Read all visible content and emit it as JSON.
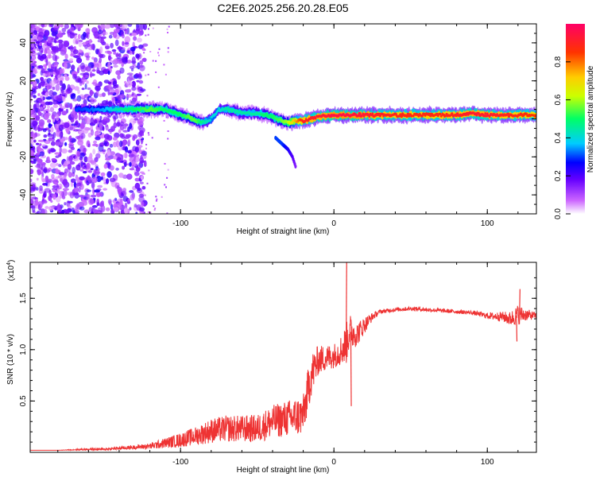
{
  "chart_data": [
    {
      "type": "heatmap",
      "title": "C2E6.2025.256.20.28.E05",
      "xlabel": "Height of straight line (km)",
      "ylabel": "Frequency (Hz)",
      "xlim": [
        -198,
        132
      ],
      "ylim": [
        -50,
        50
      ],
      "x_ticks": [
        -100,
        0,
        100
      ],
      "y_ticks": [
        -40,
        -20,
        0,
        20,
        40
      ],
      "colorbar": {
        "label": "Normalized spectral amplitude",
        "range": [
          0.0,
          1.0
        ],
        "ticks": [
          0.0,
          0.2,
          0.4,
          0.6,
          0.8
        ],
        "tick_labels": [
          "0.0",
          "0.2",
          "0.4",
          "0.6",
          "0.8"
        ],
        "colors": [
          "#ffffff",
          "#cc66ff",
          "#6600ff",
          "#0000ff",
          "#00ccff",
          "#00ff66",
          "#ccff00",
          "#ffcc00",
          "#ff3300",
          "#ff0066"
        ]
      },
      "ridge": {
        "x": [
          -165,
          -150,
          -140,
          -130,
          -120,
          -110,
          -100,
          -95,
          -90,
          -85,
          -80,
          -75,
          -70,
          -65,
          -60,
          -55,
          -50,
          -45,
          -40,
          -35,
          -30,
          -25,
          -20,
          -10,
          0,
          10,
          30,
          50,
          70,
          80,
          90,
          100,
          110,
          120,
          132
        ],
        "y": [
          5,
          5,
          5,
          5,
          5,
          5,
          2,
          1,
          -1,
          -2,
          0,
          5,
          5,
          4,
          3,
          3,
          3,
          2,
          1,
          -1,
          -2,
          -1,
          -1,
          1,
          2,
          2,
          2,
          2,
          2,
          2,
          3,
          2,
          2,
          2,
          2
        ],
        "amplitude": [
          0.3,
          0.35,
          0.45,
          0.5,
          0.55,
          0.5,
          0.5,
          0.55,
          0.55,
          0.45,
          0.4,
          0.4,
          0.45,
          0.45,
          0.45,
          0.45,
          0.45,
          0.5,
          0.5,
          0.55,
          0.6,
          0.75,
          0.9,
          0.92,
          0.95,
          0.95,
          0.9,
          0.88,
          0.88,
          0.9,
          0.92,
          0.92,
          0.9,
          0.88,
          0.85
        ]
      },
      "branch": {
        "x": [
          -38,
          -34,
          -30,
          -27,
          -25
        ],
        "y": [
          -10,
          -13,
          -16,
          -20,
          -25
        ],
        "amplitude": [
          0.3,
          0.3,
          0.25,
          0.2,
          0.15
        ]
      }
    },
    {
      "type": "line",
      "xlabel": "Height of straight line (km)",
      "ylabel": "SNR (10 * v/v)",
      "y_multiplier_label": "(x10",
      "y_multiplier_exponent": "4",
      "y_multiplier_close": ")",
      "xlim": [
        -198,
        132
      ],
      "ylim": [
        0,
        1.85
      ],
      "x_ticks": [
        -100,
        0,
        100
      ],
      "y_ticks": [
        0.5,
        1.0,
        1.5
      ],
      "y_tick_labels": [
        "0.5",
        "1.0",
        "1.5"
      ],
      "line_color": "#ee3333",
      "series": [
        {
          "name": "SNR",
          "x": [
            -198,
            -180,
            -160,
            -150,
            -140,
            -130,
            -120,
            -110,
            -100,
            -90,
            -80,
            -70,
            -60,
            -50,
            -40,
            -30,
            -20,
            -15,
            -12,
            -10,
            -5,
            0,
            5,
            8,
            10,
            15,
            20,
            25,
            30,
            40,
            50,
            60,
            70,
            80,
            90,
            100,
            110,
            115,
            120,
            125,
            132
          ],
          "y": [
            0.02,
            0.02,
            0.03,
            0.03,
            0.04,
            0.05,
            0.06,
            0.09,
            0.12,
            0.16,
            0.21,
            0.23,
            0.23,
            0.23,
            0.3,
            0.33,
            0.36,
            0.75,
            0.84,
            0.9,
            0.92,
            0.94,
            1.0,
            1.05,
            1.18,
            1.15,
            1.24,
            1.32,
            1.37,
            1.39,
            1.4,
            1.39,
            1.38,
            1.37,
            1.36,
            1.33,
            1.32,
            1.3,
            1.34,
            1.34,
            1.33
          ],
          "noise": [
            0.0,
            0.0,
            0.01,
            0.01,
            0.015,
            0.02,
            0.03,
            0.05,
            0.07,
            0.09,
            0.12,
            0.13,
            0.13,
            0.14,
            0.16,
            0.18,
            0.2,
            0.22,
            0.18,
            0.14,
            0.13,
            0.12,
            0.15,
            0.2,
            0.18,
            0.12,
            0.08,
            0.04,
            0.02,
            0.02,
            0.02,
            0.02,
            0.02,
            0.02,
            0.02,
            0.03,
            0.05,
            0.07,
            0.1,
            0.06,
            0.03
          ]
        }
      ],
      "annotations": [
        {
          "x": 8,
          "y": 1.85,
          "label": "spike"
        },
        {
          "x": 121,
          "y": 1.59,
          "label": "spike"
        },
        {
          "x": 11,
          "y": 0.45,
          "label": "dip"
        },
        {
          "x": 119,
          "y": 1.08,
          "label": "dip"
        }
      ]
    }
  ]
}
